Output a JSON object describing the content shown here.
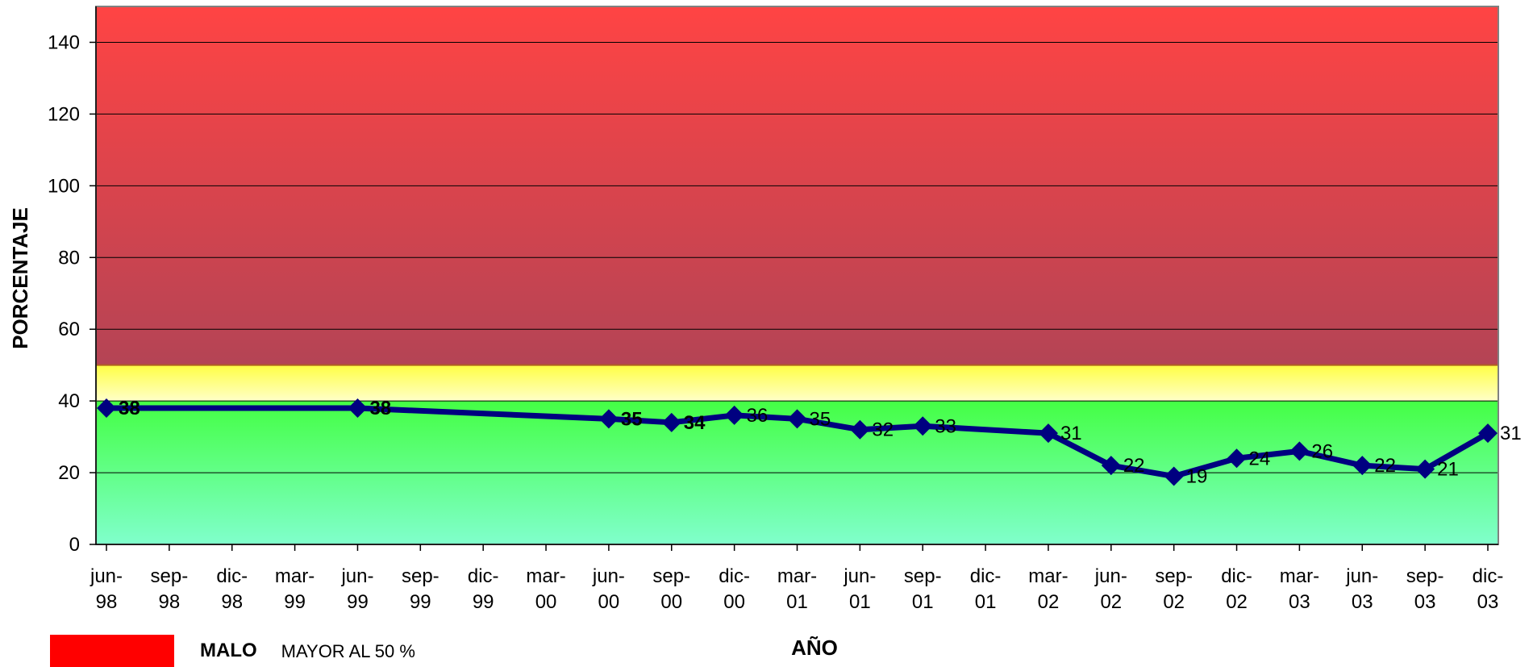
{
  "chart_data": {
    "type": "line",
    "title": "",
    "xlabel": "AÑO",
    "ylabel": "PORCENTAJE",
    "ylim": [
      0,
      150
    ],
    "yticks": [
      "0",
      "20",
      "40",
      "60",
      "80",
      "100",
      "120",
      "140"
    ],
    "grid": true,
    "x_ticks": [
      [
        "jun-",
        "98"
      ],
      [
        "sep-",
        "98"
      ],
      [
        "dic-",
        "98"
      ],
      [
        "mar-",
        "99"
      ],
      [
        "jun-",
        "99"
      ],
      [
        "sep-",
        "99"
      ],
      [
        "dic-",
        "99"
      ],
      [
        "mar-",
        "00"
      ],
      [
        "jun-",
        "00"
      ],
      [
        "sep-",
        "00"
      ],
      [
        "dic-",
        "00"
      ],
      [
        "mar-",
        "01"
      ],
      [
        "jun-",
        "01"
      ],
      [
        "sep-",
        "01"
      ],
      [
        "dic-",
        "01"
      ],
      [
        "mar-",
        "02"
      ],
      [
        "jun-",
        "02"
      ],
      [
        "sep-",
        "02"
      ],
      [
        "dic-",
        "02"
      ],
      [
        "mar-",
        "03"
      ],
      [
        "jun-",
        "03"
      ],
      [
        "sep-",
        "03"
      ],
      [
        "dic-",
        "03"
      ]
    ],
    "bands": [
      {
        "from": 50,
        "to": 150,
        "color_top": "#ff4444",
        "color_bottom": "#b44455"
      },
      {
        "from": 40,
        "to": 50,
        "color_top": "#ffff44",
        "color_bottom": "#ffffc8"
      },
      {
        "from": 0,
        "to": 40,
        "color_top": "#44ff44",
        "color_bottom": "#80ffcc"
      }
    ],
    "series": [
      {
        "color": "#000080",
        "points": [
          {
            "x": "jun-98",
            "i": 0,
            "y": 38,
            "label": "38",
            "bold": true
          },
          {
            "x": "jun-99",
            "i": 4,
            "y": 38,
            "label": "38",
            "bold": true
          },
          {
            "x": "jun-00",
            "i": 8,
            "y": 35,
            "label": "35",
            "bold": true
          },
          {
            "x": "sep-00",
            "i": 9,
            "y": 34,
            "label": "34",
            "bold": true
          },
          {
            "x": "dic-00",
            "i": 10,
            "y": 36,
            "label": "36",
            "bold": false
          },
          {
            "x": "mar-01",
            "i": 11,
            "y": 35,
            "label": "35",
            "bold": false
          },
          {
            "x": "jun-01",
            "i": 12,
            "y": 32,
            "label": "32",
            "bold": false
          },
          {
            "x": "sep-01",
            "i": 13,
            "y": 33,
            "label": "33",
            "bold": false
          },
          {
            "x": "mar-02",
            "i": 15,
            "y": 31,
            "label": "31",
            "bold": false
          },
          {
            "x": "jun-02",
            "i": 16,
            "y": 22,
            "label": "22",
            "bold": false
          },
          {
            "x": "sep-02",
            "i": 17,
            "y": 19,
            "label": "19",
            "bold": false
          },
          {
            "x": "dic-02",
            "i": 18,
            "y": 24,
            "label": "24",
            "bold": false
          },
          {
            "x": "mar-03",
            "i": 19,
            "y": 26,
            "label": "26",
            "bold": false
          },
          {
            "x": "jun-03",
            "i": 20,
            "y": 22,
            "label": "22",
            "bold": false
          },
          {
            "x": "sep-03",
            "i": 21,
            "y": 21,
            "label": "21",
            "bold": false
          },
          {
            "x": "dic-03",
            "i": 22,
            "y": 31,
            "label": "31",
            "bold": false
          }
        ]
      }
    ]
  },
  "legend": {
    "items": [
      {
        "name": "MALO",
        "desc": "MAYOR AL 50 %",
        "color": "#ff0000"
      }
    ]
  }
}
